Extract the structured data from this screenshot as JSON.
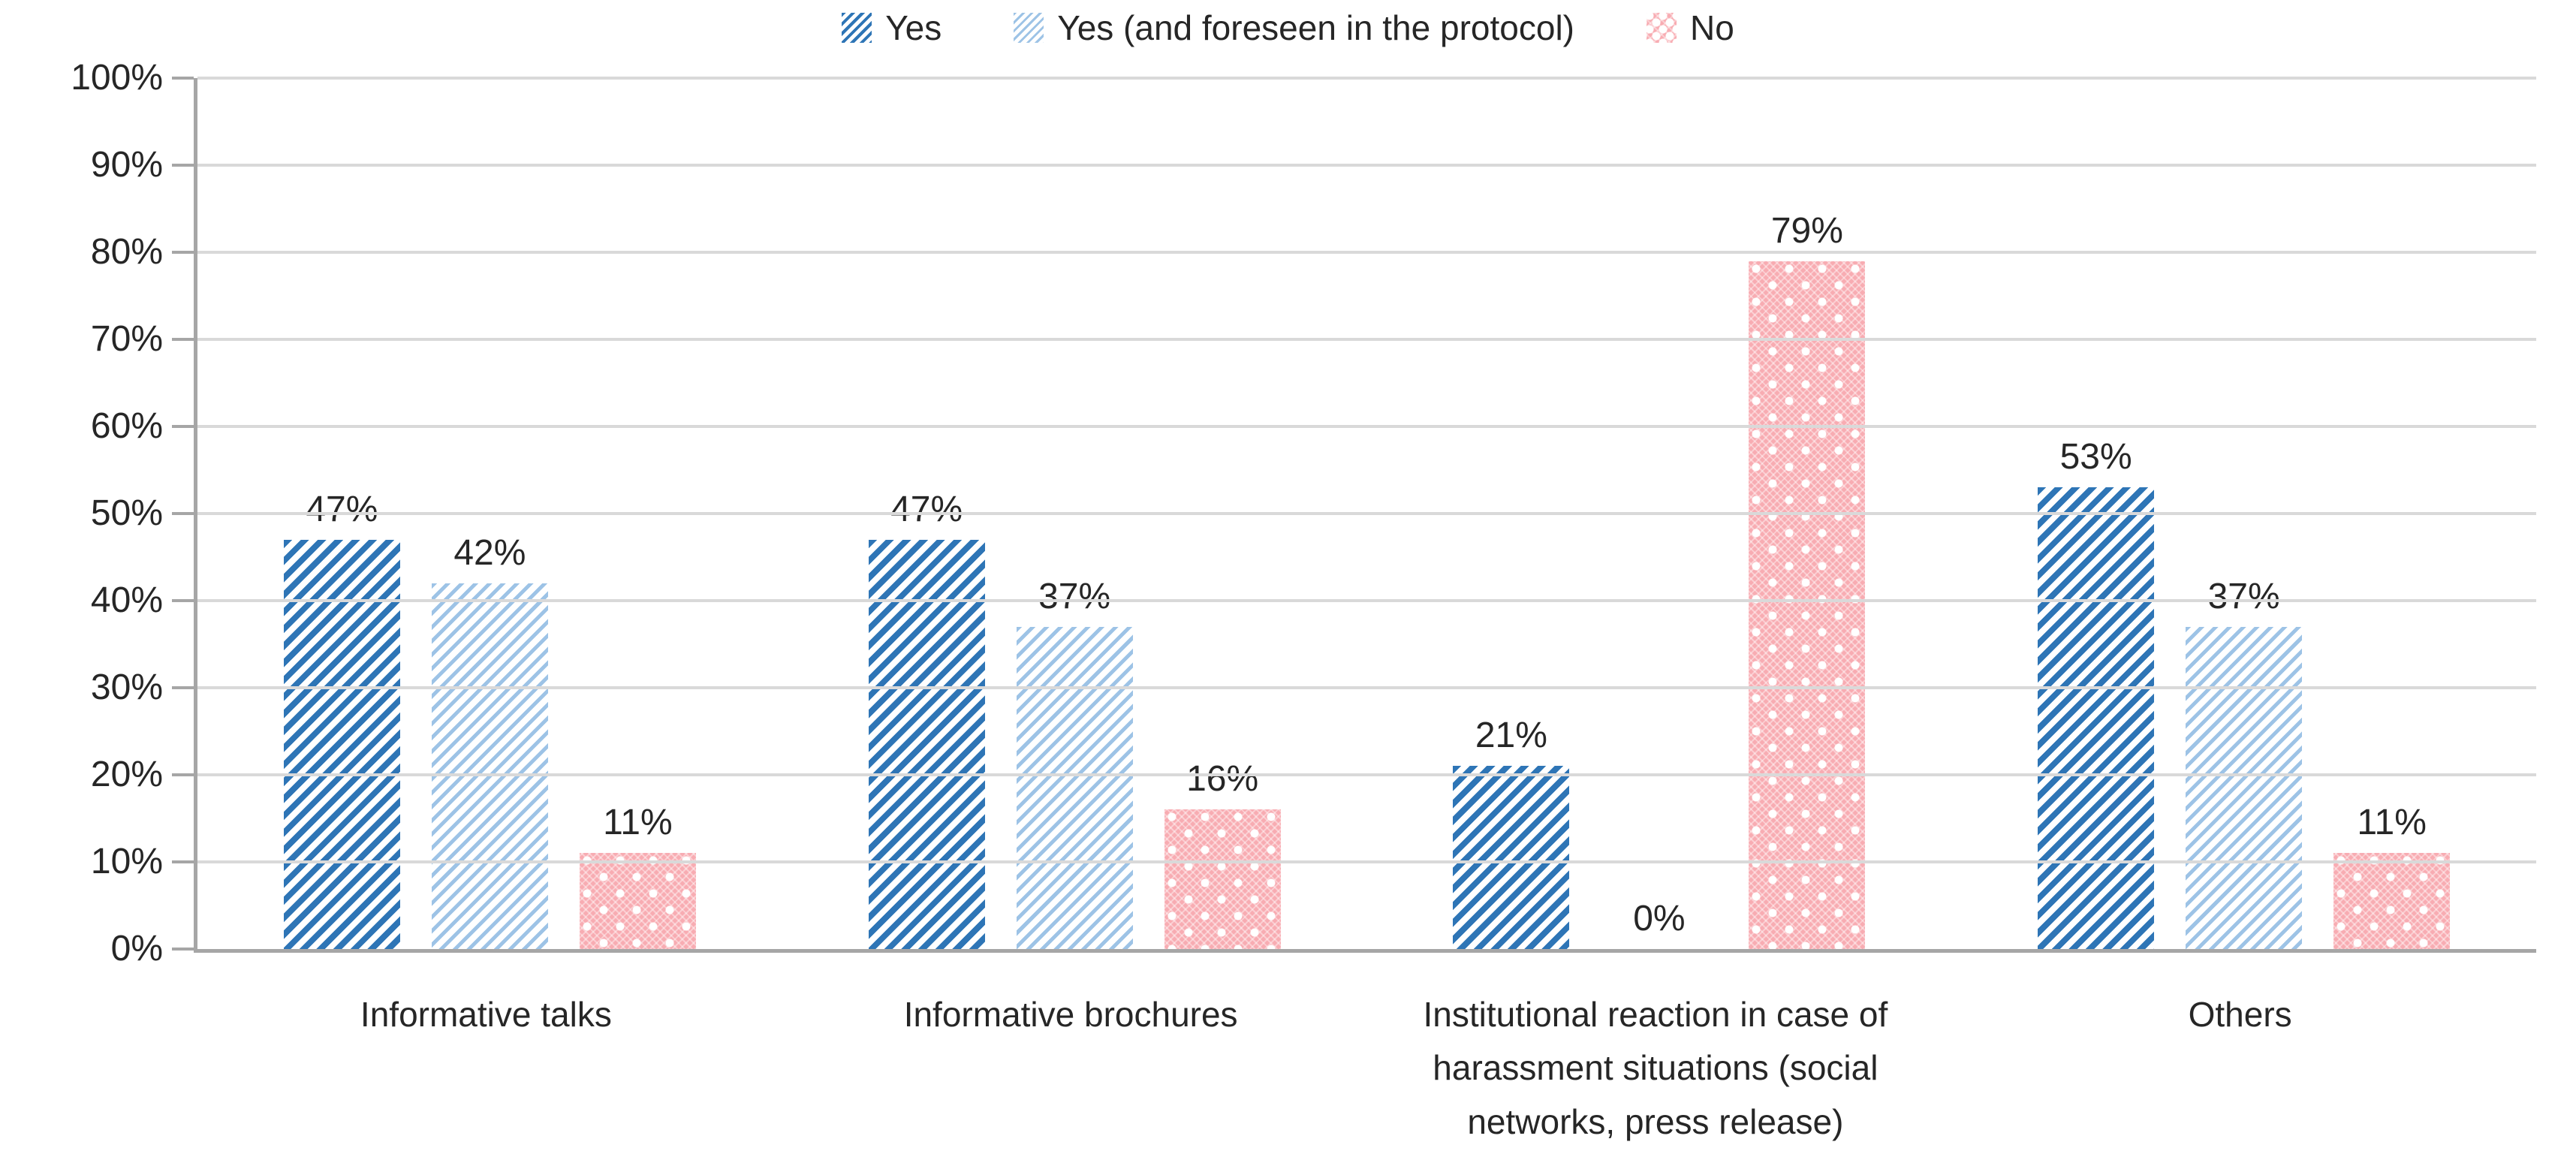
{
  "chart_data": {
    "type": "bar",
    "title": "",
    "xlabel": "",
    "ylabel": "",
    "categories": [
      "Informative talks",
      "Informative brochures",
      "Institutional reaction in case of harassment situations (social networks, press release)",
      "Others"
    ],
    "series": [
      {
        "name": "Yes",
        "color": "#2E75B6",
        "pattern": "diagonal-hatch-dark-blue",
        "values": [
          47,
          47,
          21,
          53
        ]
      },
      {
        "name": "Yes (and foreseen in the protocol)",
        "color": "#9DC3E6",
        "pattern": "diagonal-hatch-light-blue",
        "values": [
          42,
          37,
          0,
          37
        ]
      },
      {
        "name": "No",
        "color": "#F8ACB2",
        "pattern": "pink-white-dots",
        "values": [
          11,
          16,
          79,
          11
        ]
      }
    ],
    "value_labels": [
      [
        "47%",
        "42%",
        "11%"
      ],
      [
        "47%",
        "37%",
        "16%"
      ],
      [
        "21%",
        "0%",
        "79%"
      ],
      [
        "53%",
        "37%",
        "11%"
      ]
    ],
    "ylim": [
      0,
      100
    ],
    "ytick_step": 10,
    "yticks": [
      "0%",
      "10%",
      "20%",
      "30%",
      "40%",
      "50%",
      "60%",
      "70%",
      "80%",
      "90%",
      "100%"
    ],
    "grid": true,
    "legend_position": "top-center",
    "colors": {
      "gridline": "#D9D9D9",
      "axis": "#A6A6A6",
      "label_text": "#262626"
    }
  }
}
